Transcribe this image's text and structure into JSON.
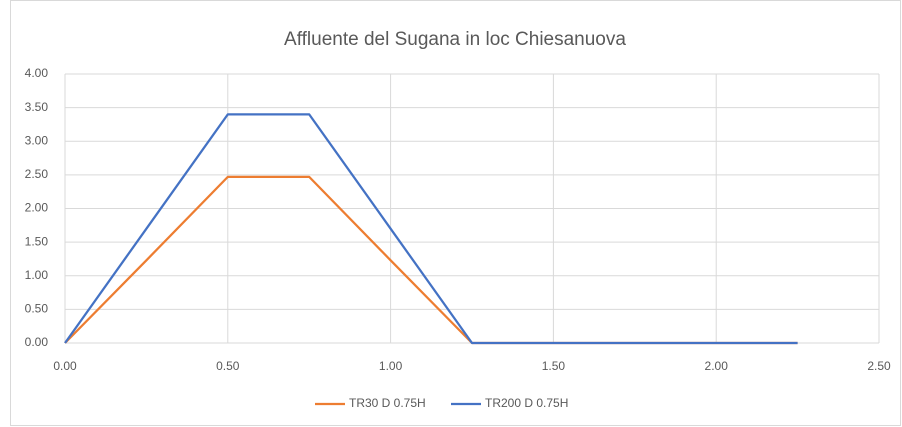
{
  "chart_data": {
    "type": "line",
    "title": "Affluente del Sugana in loc Chiesanuova",
    "x": [
      0,
      0.25,
      0.5,
      0.75,
      1.0,
      1.25,
      1.5,
      1.75,
      2.0,
      2.25
    ],
    "series": [
      {
        "name": "TR30 D 0.75H",
        "color": "#ed7d31",
        "values": [
          0,
          1.23,
          2.47,
          2.47,
          1.23,
          0,
          0,
          0,
          0,
          0
        ]
      },
      {
        "name": "TR200 D 0.75H",
        "color": "#4472c4",
        "values": [
          0,
          1.7,
          3.4,
          3.4,
          1.7,
          0,
          0,
          0,
          0,
          0
        ]
      }
    ],
    "xlim": [
      0,
      2.5
    ],
    "xticks": [
      {
        "value": 0,
        "label": "0.00"
      },
      {
        "value": 0.5,
        "label": "0.50"
      },
      {
        "value": 1,
        "label": "1.00"
      },
      {
        "value": 1.5,
        "label": "1.50"
      },
      {
        "value": 2,
        "label": "2.00"
      },
      {
        "value": 2.5,
        "label": "2.50"
      }
    ],
    "ylim": [
      0,
      4
    ],
    "yticks": [
      {
        "value": 0,
        "label": "0.00"
      },
      {
        "value": 0.5,
        "label": "0.50"
      },
      {
        "value": 1,
        "label": "1.00"
      },
      {
        "value": 1.5,
        "label": "1.50"
      },
      {
        "value": 2,
        "label": "2.00"
      },
      {
        "value": 2.5,
        "label": "2.50"
      },
      {
        "value": 3,
        "label": "3.00"
      },
      {
        "value": 3.5,
        "label": "3.50"
      },
      {
        "value": 4,
        "label": "4.00"
      }
    ],
    "grid": true,
    "legend": "bottom"
  }
}
